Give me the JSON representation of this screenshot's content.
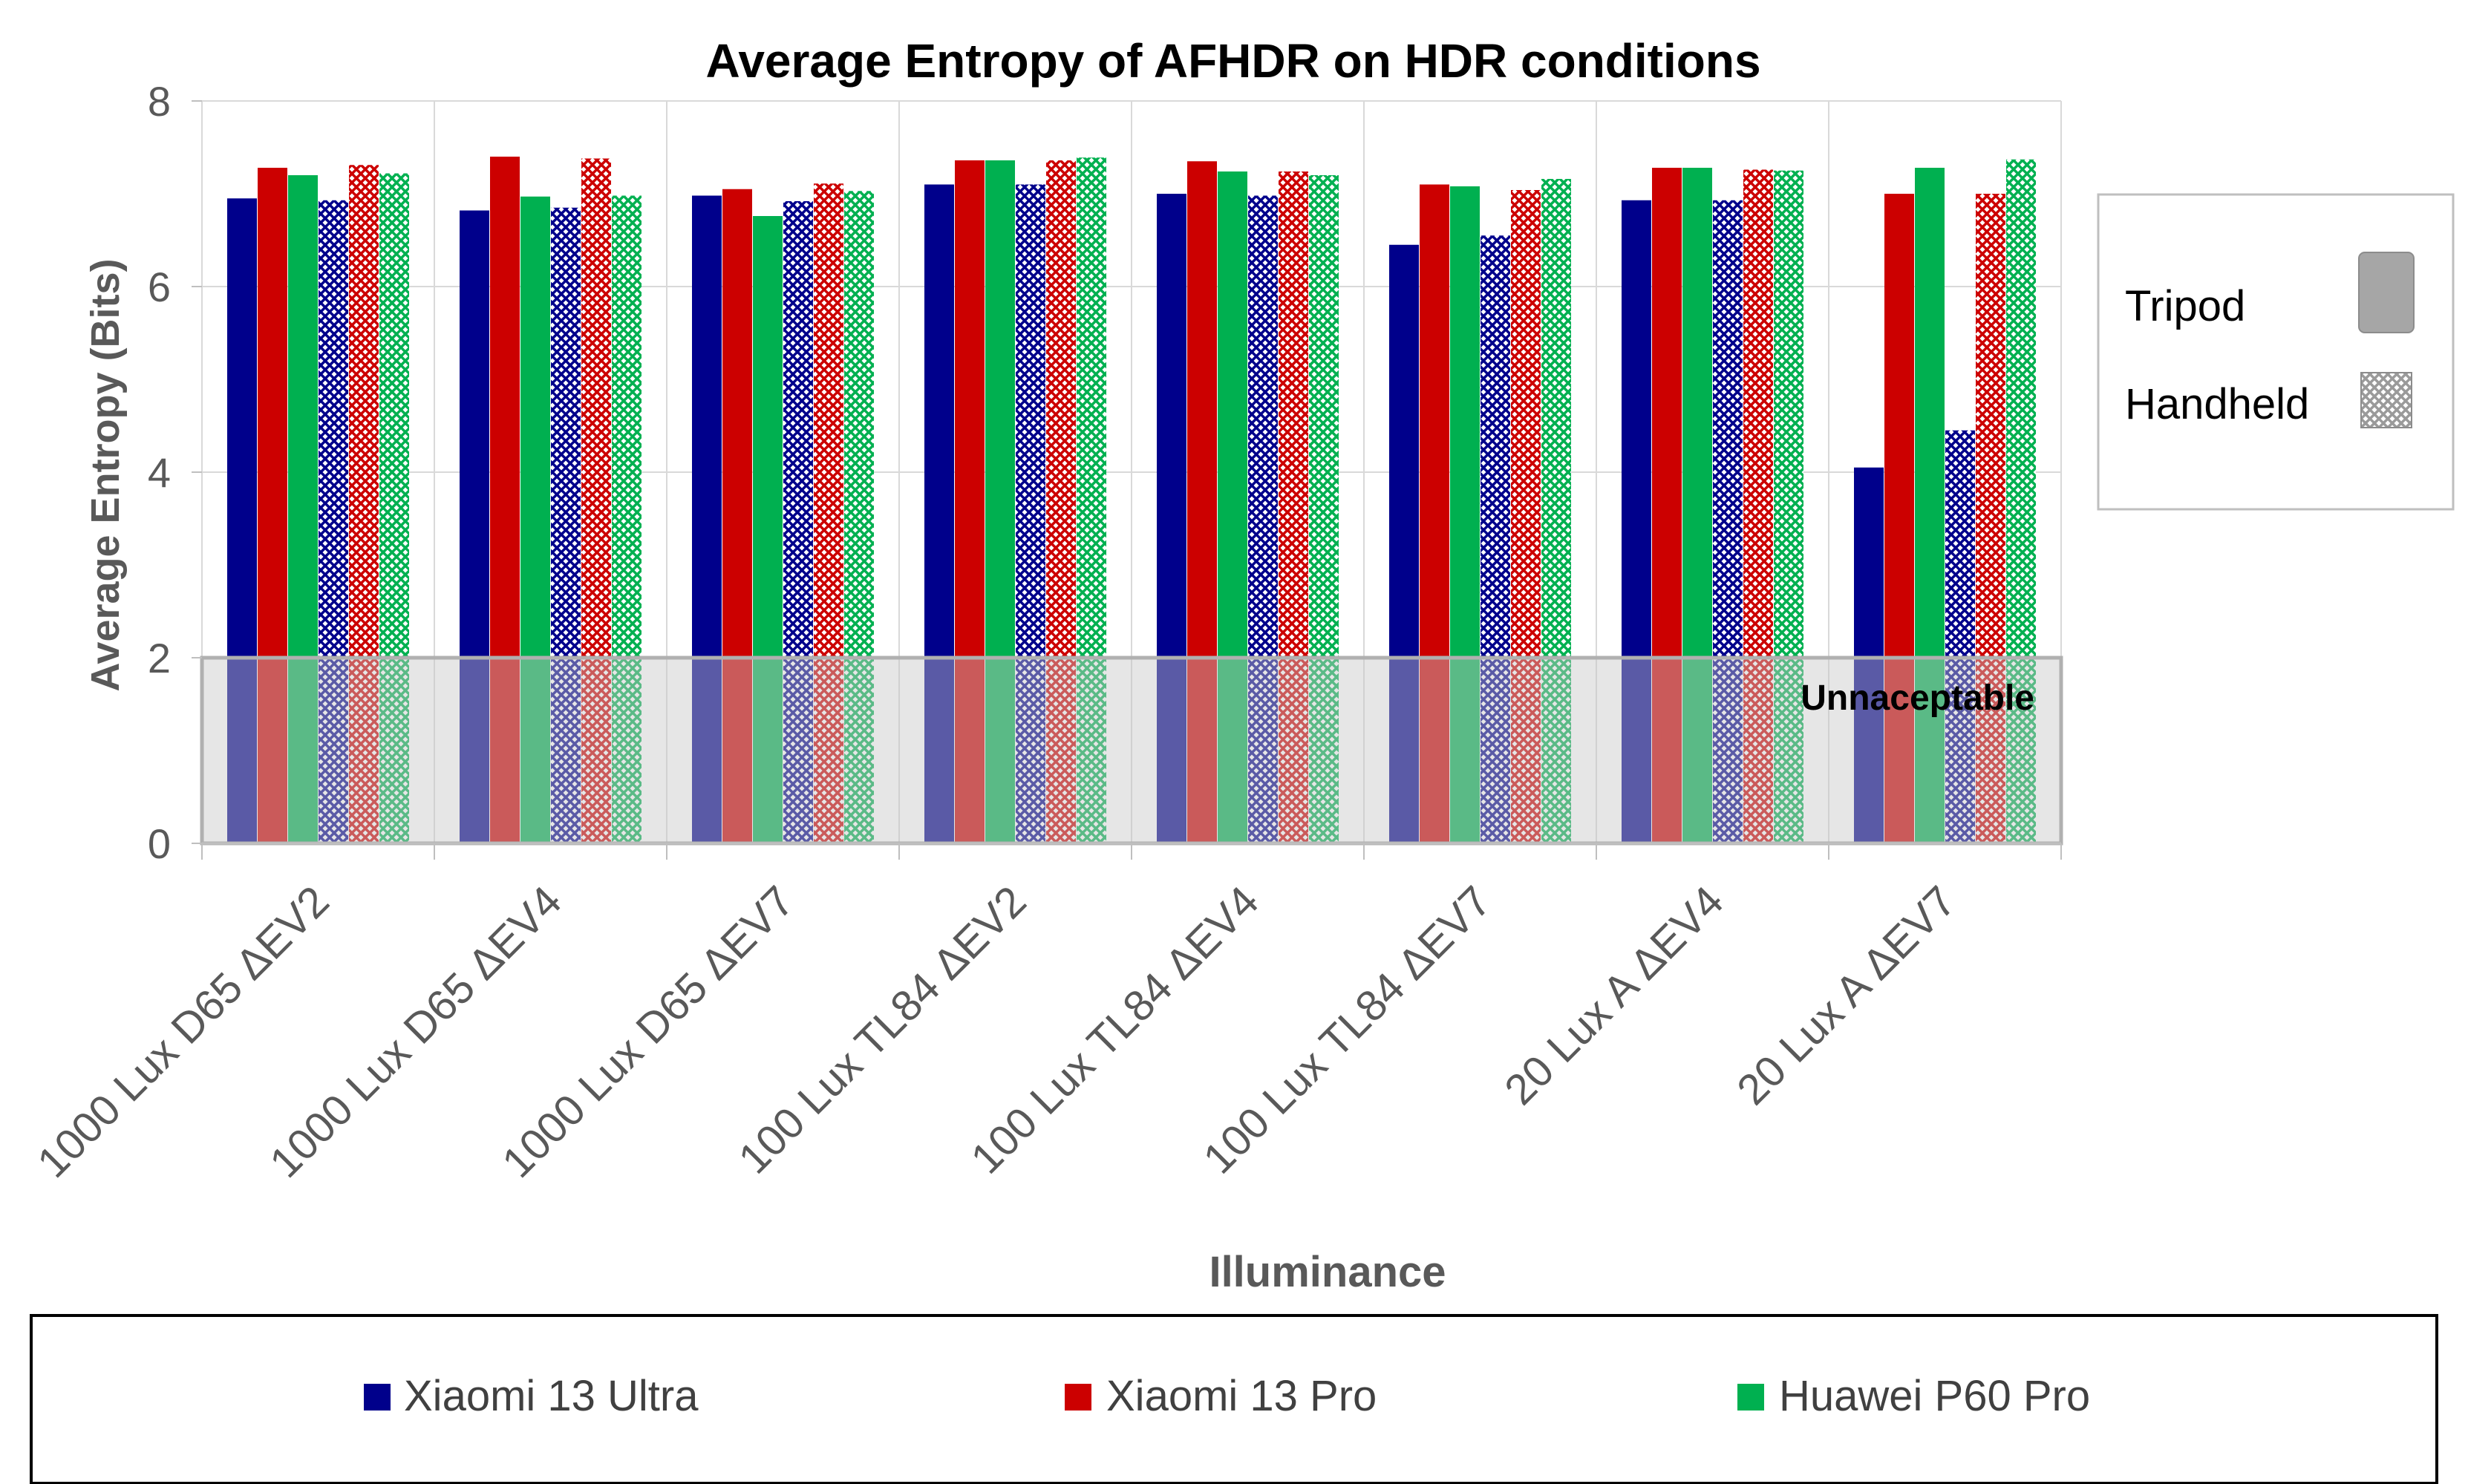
{
  "chart_data": {
    "type": "bar",
    "title": "Average Entropy of AFHDR on HDR conditions",
    "xlabel": "Illuminance",
    "ylabel": "Average Entropy (Bits)",
    "ylim": [
      0,
      8
    ],
    "yticks": [
      "0",
      "2",
      "4",
      "6",
      "8"
    ],
    "grid": true,
    "categories": [
      "1000 Lux D65 ΔEV2",
      "1000 Lux D65 ΔEV4",
      "1000 Lux D65 ΔEV7",
      "100 Lux TL84 ΔEV2",
      "100 Lux TL84 ΔEV4",
      "100 Lux TL84 ΔEV7",
      "20 Lux A ΔEV4",
      "20 Lux A ΔEV7"
    ],
    "series": [
      {
        "name": "Xiaomi 13 Ultra",
        "mode": "Tripod",
        "color": "#00008B",
        "values": [
          6.95,
          6.82,
          6.98,
          7.1,
          7.0,
          6.45,
          6.93,
          4.05
        ]
      },
      {
        "name": "Xiaomi 13 Pro",
        "mode": "Tripod",
        "color": "#CC0000",
        "values": [
          7.28,
          7.4,
          7.05,
          7.36,
          7.35,
          7.1,
          7.28,
          7.0
        ]
      },
      {
        "name": "Huawei P60 Pro",
        "mode": "Tripod",
        "color": "#00B050",
        "values": [
          7.2,
          6.97,
          6.76,
          7.36,
          7.24,
          7.08,
          7.28,
          7.28
        ]
      },
      {
        "name": "Xiaomi 13 Ultra",
        "mode": "Handheld",
        "color": "#00008B",
        "values": [
          6.93,
          6.85,
          6.92,
          7.1,
          6.98,
          6.55,
          6.93,
          4.45
        ]
      },
      {
        "name": "Xiaomi 13 Pro",
        "mode": "Handheld",
        "color": "#CC0000",
        "values": [
          7.31,
          7.38,
          7.11,
          7.36,
          7.24,
          7.04,
          7.26,
          7.0
        ]
      },
      {
        "name": "Huawei P60 Pro",
        "mode": "Handheld",
        "color": "#00B050",
        "values": [
          7.22,
          6.98,
          7.03,
          7.39,
          7.2,
          7.16,
          7.25,
          7.37
        ]
      }
    ],
    "bands": [
      {
        "label": "Unnaceptable",
        "from": 0,
        "to": 2
      }
    ],
    "legend": {
      "devices": [
        {
          "label": "Xiaomi 13 Ultra",
          "color": "#00008B"
        },
        {
          "label": "Xiaomi 13 Pro",
          "color": "#CC0000"
        },
        {
          "label": "Huawei P60 Pro",
          "color": "#00B050"
        }
      ],
      "modes": [
        {
          "label": "Tripod",
          "style": "solid"
        },
        {
          "label": "Handheld",
          "style": "pattern"
        }
      ],
      "device_legend_position": "bottom",
      "mode_legend_position": "right"
    }
  }
}
